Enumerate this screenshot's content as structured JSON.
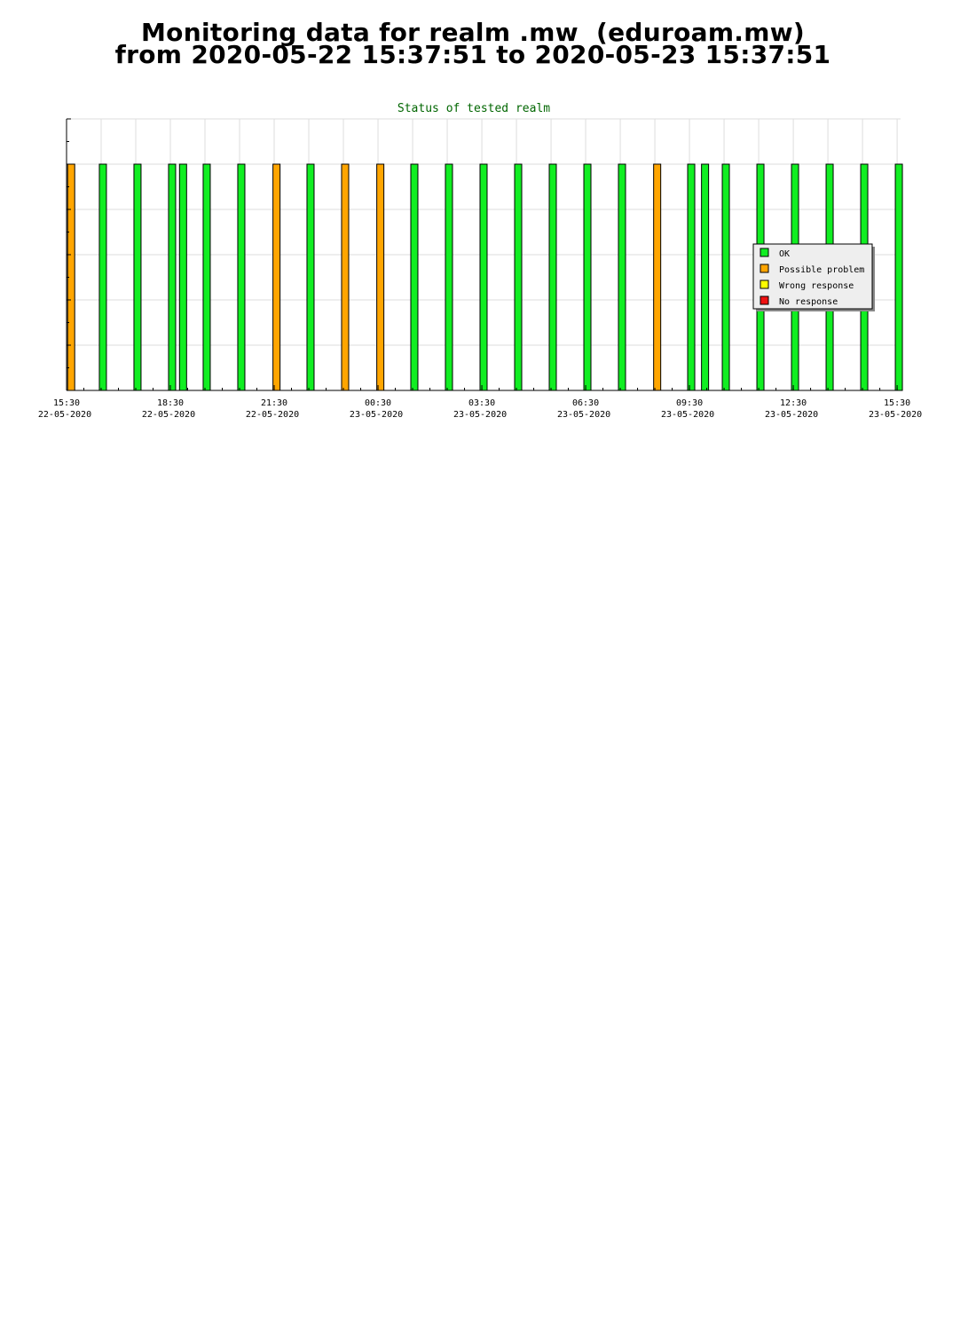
{
  "page": {
    "title_line1": "Monitoring data for realm .mw  (eduroam.mw)",
    "title_line2": "from 2020-05-22 15:37:51 to 2020-05-23 15:37:51"
  },
  "chart_data": {
    "type": "bar",
    "title": "Status of tested realm",
    "xlabel": "",
    "ylabel": "",
    "x_range": [
      "2020-05-22 15:30",
      "2020-05-23 15:36"
    ],
    "ylim": [
      0,
      6
    ],
    "grid": true,
    "legend_position": "right",
    "x_ticks": [
      {
        "time": "2020-05-22 15:30",
        "label": "15:30",
        "date": "22-05-2020"
      },
      {
        "time": "2020-05-22 18:30",
        "label": "18:30",
        "date": "22-05-2020"
      },
      {
        "time": "2020-05-22 21:30",
        "label": "21:30",
        "date": "22-05-2020"
      },
      {
        "time": "2020-05-23 00:30",
        "label": "00:30",
        "date": "23-05-2020"
      },
      {
        "time": "2020-05-23 03:30",
        "label": "03:30",
        "date": "23-05-2020"
      },
      {
        "time": "2020-05-23 06:30",
        "label": "06:30",
        "date": "23-05-2020"
      },
      {
        "time": "2020-05-23 09:30",
        "label": "09:30",
        "date": "23-05-2020"
      },
      {
        "time": "2020-05-23 12:30",
        "label": "12:30",
        "date": "23-05-2020"
      },
      {
        "time": "2020-05-23 15:30",
        "label": "15:30",
        "date": "23-05-2020"
      }
    ],
    "categories": [
      "OK",
      "Possible problem",
      "Wrong response",
      "No response"
    ],
    "colors": {
      "OK": "#11ee22",
      "Possible problem": "#ffa500",
      "Wrong response": "#ffff00",
      "No response": "#ee1111",
      "title": "#006600",
      "grid": "#dddddd",
      "legend_bg": "#eeeeee"
    },
    "series": [
      {
        "time": "2020-05-22 15:38",
        "status": "Possible problem",
        "value": 5
      },
      {
        "time": "2020-05-22 16:33",
        "status": "OK",
        "value": 5
      },
      {
        "time": "2020-05-22 17:33",
        "status": "OK",
        "value": 5
      },
      {
        "time": "2020-05-22 18:33",
        "status": "OK",
        "value": 5
      },
      {
        "time": "2020-05-22 18:52",
        "status": "OK",
        "value": 5
      },
      {
        "time": "2020-05-22 19:33",
        "status": "OK",
        "value": 5
      },
      {
        "time": "2020-05-22 20:33",
        "status": "OK",
        "value": 5
      },
      {
        "time": "2020-05-22 21:34",
        "status": "Possible problem",
        "value": 5
      },
      {
        "time": "2020-05-22 22:33",
        "status": "OK",
        "value": 5
      },
      {
        "time": "2020-05-22 23:33",
        "status": "Possible problem",
        "value": 5
      },
      {
        "time": "2020-05-23 00:34",
        "status": "Possible problem",
        "value": 5
      },
      {
        "time": "2020-05-23 01:33",
        "status": "OK",
        "value": 5
      },
      {
        "time": "2020-05-23 02:33",
        "status": "OK",
        "value": 5
      },
      {
        "time": "2020-05-23 03:33",
        "status": "OK",
        "value": 5
      },
      {
        "time": "2020-05-23 04:33",
        "status": "OK",
        "value": 5
      },
      {
        "time": "2020-05-23 05:33",
        "status": "OK",
        "value": 5
      },
      {
        "time": "2020-05-23 06:33",
        "status": "OK",
        "value": 5
      },
      {
        "time": "2020-05-23 07:33",
        "status": "OK",
        "value": 5
      },
      {
        "time": "2020-05-23 08:34",
        "status": "Possible problem",
        "value": 5
      },
      {
        "time": "2020-05-23 09:33",
        "status": "OK",
        "value": 5
      },
      {
        "time": "2020-05-23 09:57",
        "status": "OK",
        "value": 5
      },
      {
        "time": "2020-05-23 10:33",
        "status": "OK",
        "value": 5
      },
      {
        "time": "2020-05-23 11:33",
        "status": "OK",
        "value": 5
      },
      {
        "time": "2020-05-23 12:33",
        "status": "OK",
        "value": 5
      },
      {
        "time": "2020-05-23 13:33",
        "status": "OK",
        "value": 5
      },
      {
        "time": "2020-05-23 14:33",
        "status": "OK",
        "value": 5
      },
      {
        "time": "2020-05-23 15:33",
        "status": "OK",
        "value": 5
      }
    ]
  }
}
